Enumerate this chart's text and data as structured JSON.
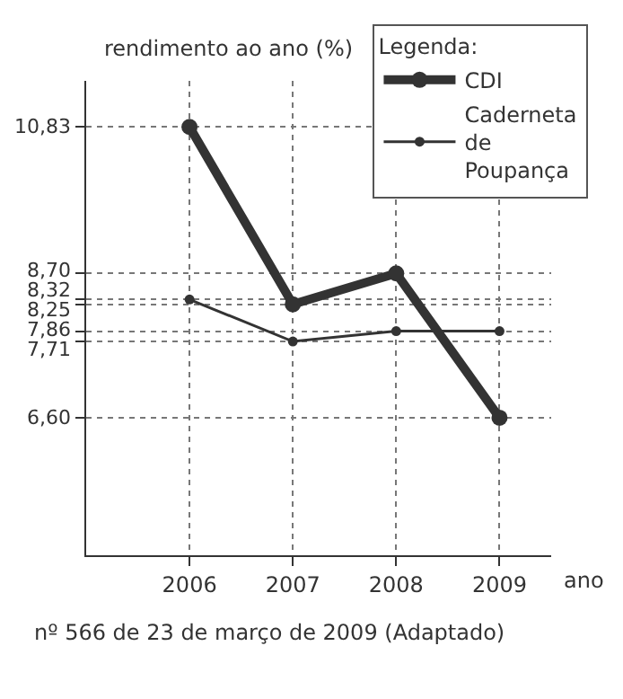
{
  "chart_data": {
    "type": "line",
    "xlabel": "ano",
    "ylabel": "rendimento ao ano (%)",
    "legend_title": "Legenda:",
    "x": [
      2006,
      2007,
      2008,
      2009
    ],
    "series": [
      {
        "name": "CDI",
        "color": "#333333",
        "values": [
          10.83,
          8.25,
          8.7,
          6.6
        ]
      },
      {
        "name": "Caderneta de Poupança",
        "color": "#333333",
        "values": [
          8.32,
          7.71,
          7.86,
          7.86
        ]
      }
    ],
    "xlim": [
      2005,
      2009.5
    ],
    "xticks": [
      2006,
      2007,
      2008,
      2009
    ],
    "ylim": [
      4.6,
      11.5
    ],
    "yticks": [
      {
        "value": 6.6,
        "label": "6,60"
      },
      {
        "value": 7.71,
        "label": "7,71"
      },
      {
        "value": 7.86,
        "label": "7,86"
      },
      {
        "value": 8.25,
        "label": "8,25"
      },
      {
        "value": 8.32,
        "label": "8,32"
      },
      {
        "value": 8.7,
        "label": "8,70"
      },
      {
        "value": 10.83,
        "label": "10,83"
      }
    ],
    "grid": true,
    "legend": "top right",
    "marker": "circle",
    "line_style": "solid",
    "annotations": [
      "nº 566 de 23 de março de 2009 (Adaptado)"
    ]
  }
}
